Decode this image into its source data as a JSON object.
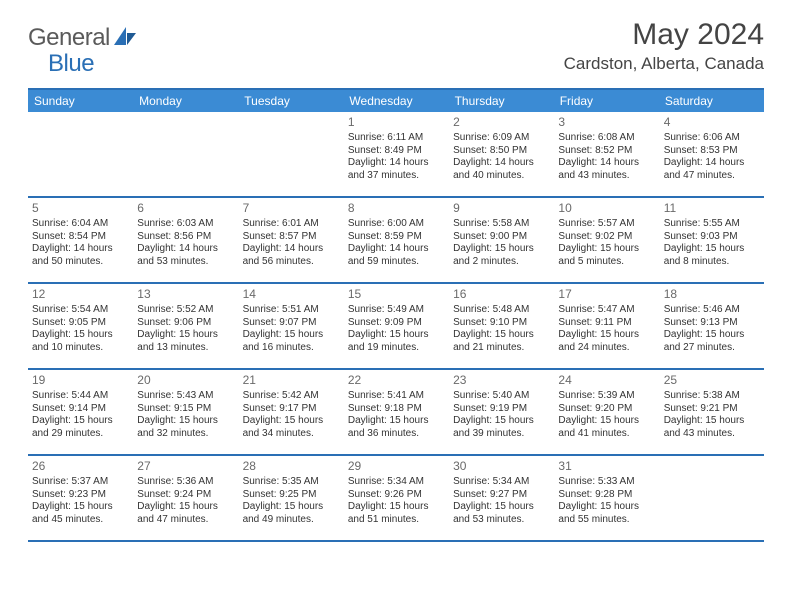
{
  "logo": {
    "text1": "General",
    "text2": "Blue"
  },
  "title": "May 2024",
  "location": "Cardston, Alberta, Canada",
  "dow": [
    "Sunday",
    "Monday",
    "Tuesday",
    "Wednesday",
    "Thursday",
    "Friday",
    "Saturday"
  ],
  "colors": {
    "header_bar": "#3b8bd4",
    "rule": "#2a6fb5",
    "text": "#333333",
    "muted": "#6a6a6a"
  },
  "weeks": [
    [
      null,
      null,
      null,
      {
        "n": "1",
        "sr": "6:11 AM",
        "ss": "8:49 PM",
        "dl": "14 hours and 37 minutes."
      },
      {
        "n": "2",
        "sr": "6:09 AM",
        "ss": "8:50 PM",
        "dl": "14 hours and 40 minutes."
      },
      {
        "n": "3",
        "sr": "6:08 AM",
        "ss": "8:52 PM",
        "dl": "14 hours and 43 minutes."
      },
      {
        "n": "4",
        "sr": "6:06 AM",
        "ss": "8:53 PM",
        "dl": "14 hours and 47 minutes."
      }
    ],
    [
      {
        "n": "5",
        "sr": "6:04 AM",
        "ss": "8:54 PM",
        "dl": "14 hours and 50 minutes."
      },
      {
        "n": "6",
        "sr": "6:03 AM",
        "ss": "8:56 PM",
        "dl": "14 hours and 53 minutes."
      },
      {
        "n": "7",
        "sr": "6:01 AM",
        "ss": "8:57 PM",
        "dl": "14 hours and 56 minutes."
      },
      {
        "n": "8",
        "sr": "6:00 AM",
        "ss": "8:59 PM",
        "dl": "14 hours and 59 minutes."
      },
      {
        "n": "9",
        "sr": "5:58 AM",
        "ss": "9:00 PM",
        "dl": "15 hours and 2 minutes."
      },
      {
        "n": "10",
        "sr": "5:57 AM",
        "ss": "9:02 PM",
        "dl": "15 hours and 5 minutes."
      },
      {
        "n": "11",
        "sr": "5:55 AM",
        "ss": "9:03 PM",
        "dl": "15 hours and 8 minutes."
      }
    ],
    [
      {
        "n": "12",
        "sr": "5:54 AM",
        "ss": "9:05 PM",
        "dl": "15 hours and 10 minutes."
      },
      {
        "n": "13",
        "sr": "5:52 AM",
        "ss": "9:06 PM",
        "dl": "15 hours and 13 minutes."
      },
      {
        "n": "14",
        "sr": "5:51 AM",
        "ss": "9:07 PM",
        "dl": "15 hours and 16 minutes."
      },
      {
        "n": "15",
        "sr": "5:49 AM",
        "ss": "9:09 PM",
        "dl": "15 hours and 19 minutes."
      },
      {
        "n": "16",
        "sr": "5:48 AM",
        "ss": "9:10 PM",
        "dl": "15 hours and 21 minutes."
      },
      {
        "n": "17",
        "sr": "5:47 AM",
        "ss": "9:11 PM",
        "dl": "15 hours and 24 minutes."
      },
      {
        "n": "18",
        "sr": "5:46 AM",
        "ss": "9:13 PM",
        "dl": "15 hours and 27 minutes."
      }
    ],
    [
      {
        "n": "19",
        "sr": "5:44 AM",
        "ss": "9:14 PM",
        "dl": "15 hours and 29 minutes."
      },
      {
        "n": "20",
        "sr": "5:43 AM",
        "ss": "9:15 PM",
        "dl": "15 hours and 32 minutes."
      },
      {
        "n": "21",
        "sr": "5:42 AM",
        "ss": "9:17 PM",
        "dl": "15 hours and 34 minutes."
      },
      {
        "n": "22",
        "sr": "5:41 AM",
        "ss": "9:18 PM",
        "dl": "15 hours and 36 minutes."
      },
      {
        "n": "23",
        "sr": "5:40 AM",
        "ss": "9:19 PM",
        "dl": "15 hours and 39 minutes."
      },
      {
        "n": "24",
        "sr": "5:39 AM",
        "ss": "9:20 PM",
        "dl": "15 hours and 41 minutes."
      },
      {
        "n": "25",
        "sr": "5:38 AM",
        "ss": "9:21 PM",
        "dl": "15 hours and 43 minutes."
      }
    ],
    [
      {
        "n": "26",
        "sr": "5:37 AM",
        "ss": "9:23 PM",
        "dl": "15 hours and 45 minutes."
      },
      {
        "n": "27",
        "sr": "5:36 AM",
        "ss": "9:24 PM",
        "dl": "15 hours and 47 minutes."
      },
      {
        "n": "28",
        "sr": "5:35 AM",
        "ss": "9:25 PM",
        "dl": "15 hours and 49 minutes."
      },
      {
        "n": "29",
        "sr": "5:34 AM",
        "ss": "9:26 PM",
        "dl": "15 hours and 51 minutes."
      },
      {
        "n": "30",
        "sr": "5:34 AM",
        "ss": "9:27 PM",
        "dl": "15 hours and 53 minutes."
      },
      {
        "n": "31",
        "sr": "5:33 AM",
        "ss": "9:28 PM",
        "dl": "15 hours and 55 minutes."
      },
      null
    ]
  ],
  "labels": {
    "sunrise": "Sunrise: ",
    "sunset": "Sunset: ",
    "daylight": "Daylight: "
  }
}
